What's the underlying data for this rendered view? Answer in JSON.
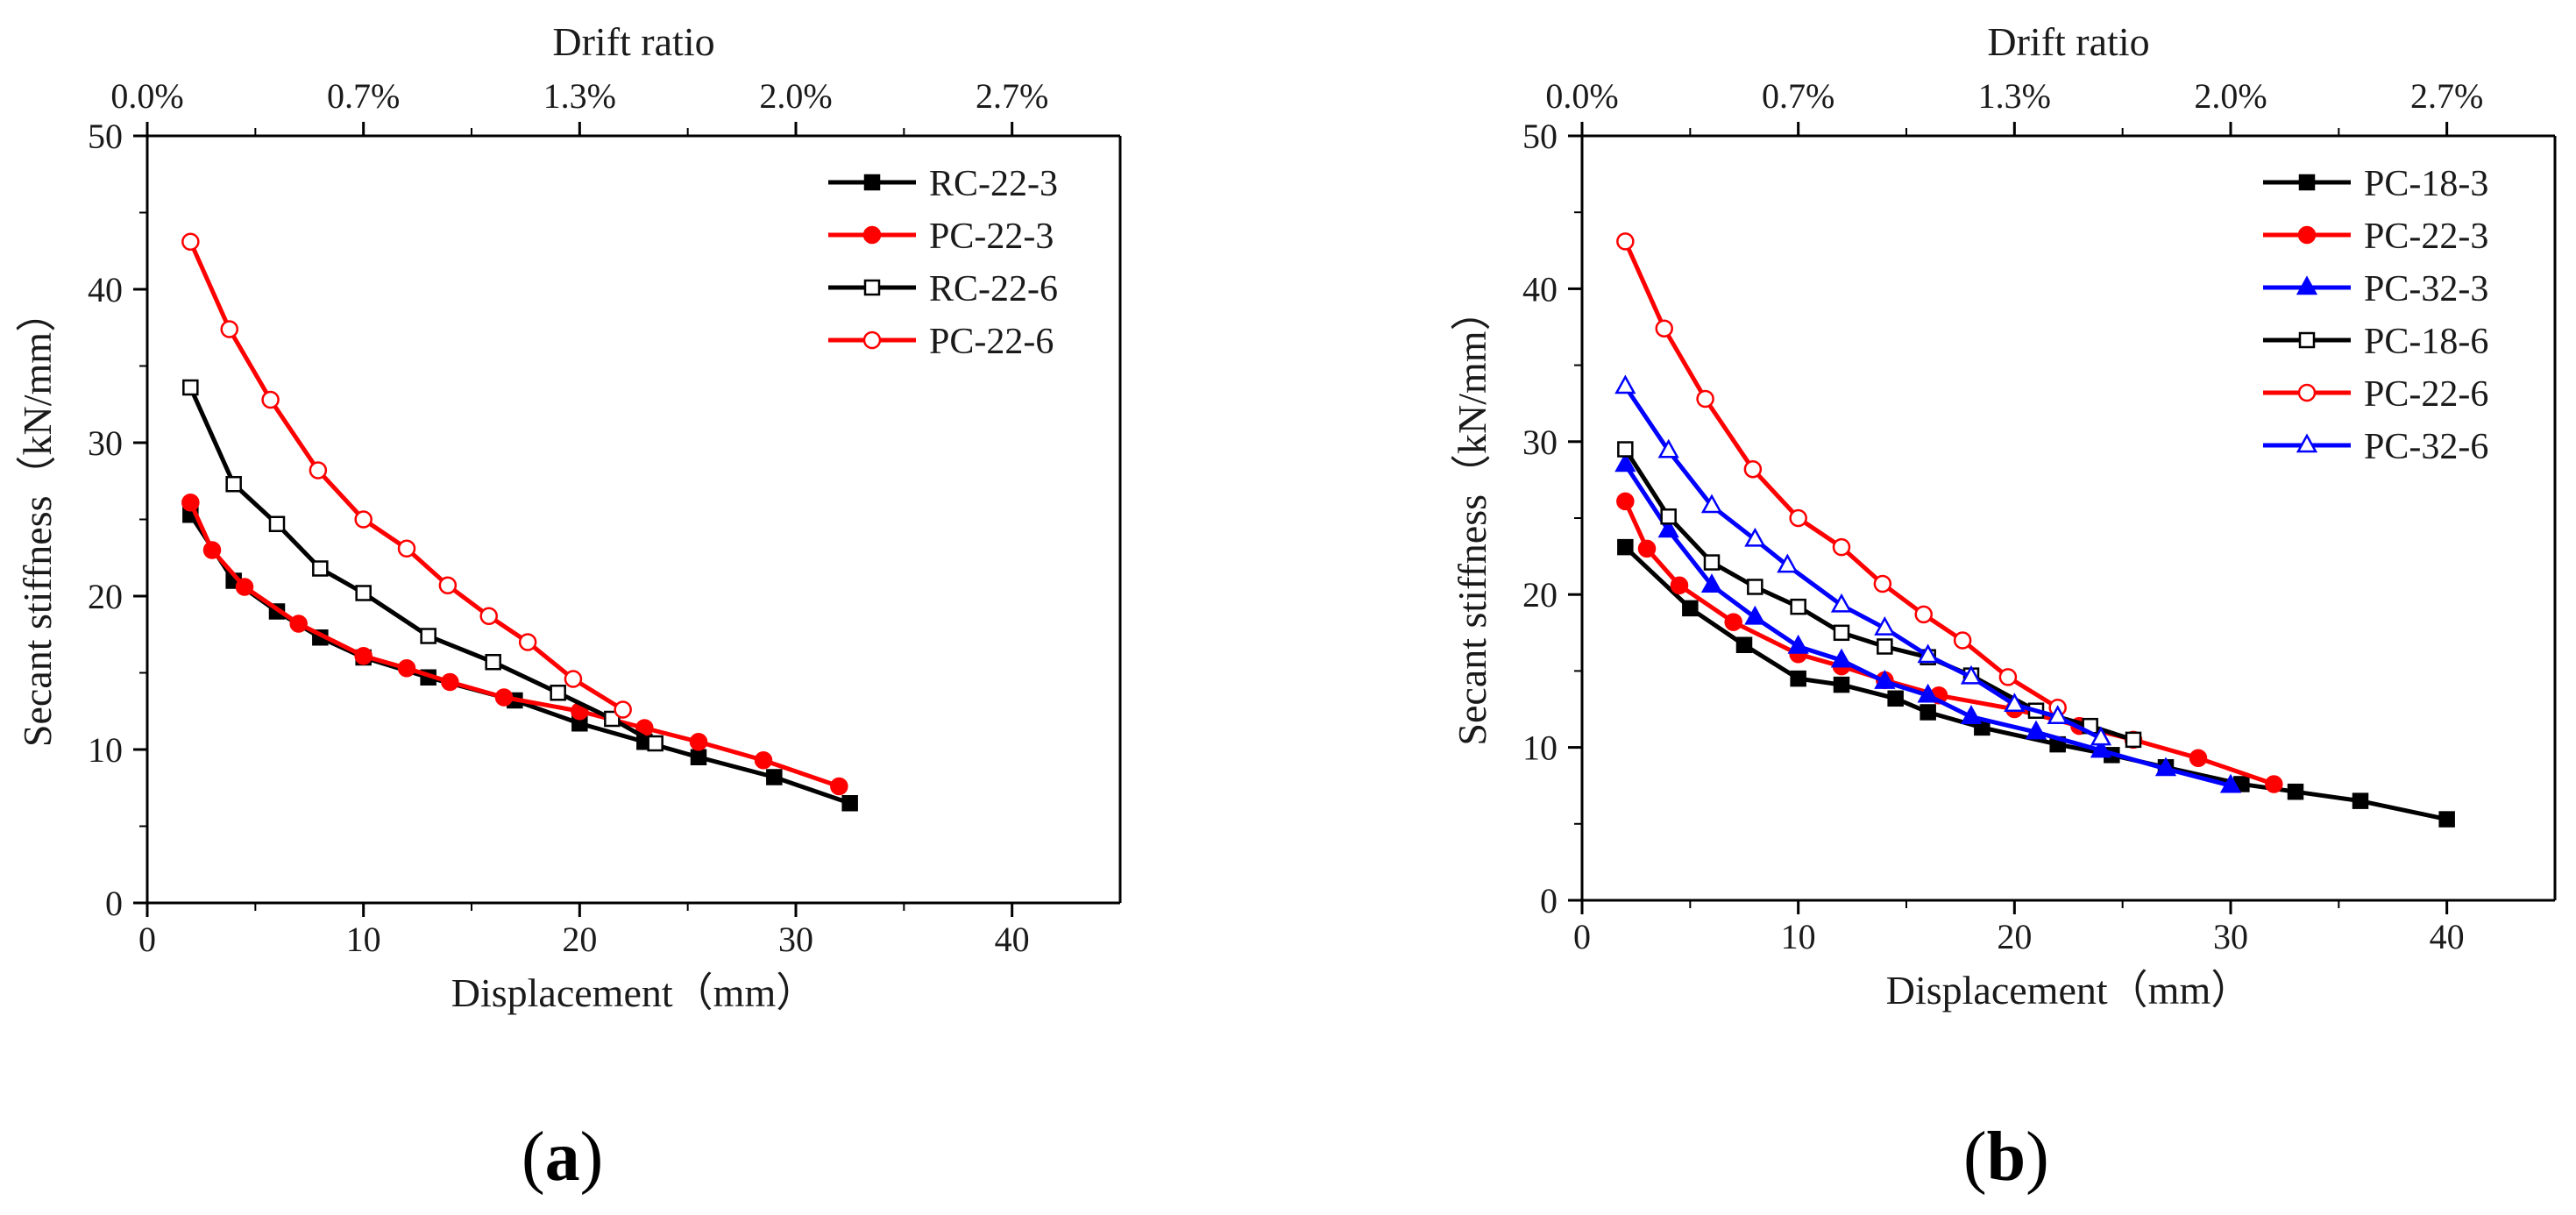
{
  "figure": {
    "panels": [
      {
        "label_open": "(",
        "label_letter": "a",
        "label_close": ")"
      },
      {
        "label_open": "(",
        "label_letter": "b",
        "label_close": ")"
      }
    ]
  },
  "chart_data": [
    {
      "type": "line",
      "panel": "a",
      "xlabel": "Displacement（mm）",
      "ylabel": "Secant stiffness（kN/mm）",
      "top_axis_label": "Drift ratio",
      "xlim": [
        0,
        45
      ],
      "ylim": [
        0,
        50
      ],
      "x_ticks": [
        "0",
        "10",
        "20",
        "30",
        "40"
      ],
      "y_ticks": [
        "0",
        "10",
        "20",
        "30",
        "40",
        "50"
      ],
      "top_ticks": [
        "0.0%",
        "0.7%",
        "1.3%",
        "2.0%",
        "2.7%"
      ],
      "legend_position": "top-right",
      "grid": false,
      "series": [
        {
          "name": "RC-22-3",
          "color": "#000000",
          "marker": "square",
          "filled": true,
          "x": [
            2.0,
            4.0,
            6.0,
            8.0,
            10.0,
            13.0,
            17.0,
            20.0,
            23.0,
            25.5,
            29.0,
            32.5
          ],
          "y": [
            25.3,
            21.0,
            19.0,
            17.3,
            16.0,
            14.7,
            13.2,
            11.7,
            10.5,
            9.5,
            8.2,
            6.5
          ]
        },
        {
          "name": "PC-22-3",
          "color": "#ff0000",
          "marker": "circle",
          "filled": true,
          "x": [
            2.0,
            3.0,
            4.5,
            7.0,
            10.0,
            12.0,
            14.0,
            16.5,
            20.0,
            23.0,
            25.5,
            28.5,
            32.0
          ],
          "y": [
            26.1,
            23.0,
            20.6,
            18.2,
            16.1,
            15.3,
            14.4,
            13.4,
            12.5,
            11.4,
            10.5,
            9.3,
            7.6
          ]
        },
        {
          "name": "RC-22-6",
          "color": "#000000",
          "marker": "square",
          "filled": false,
          "x": [
            2.0,
            4.0,
            6.0,
            8.0,
            10.0,
            13.0,
            16.0,
            19.0,
            21.5,
            23.5
          ],
          "y": [
            33.6,
            27.3,
            24.7,
            21.8,
            20.2,
            17.4,
            15.7,
            13.7,
            12.0,
            10.4
          ]
        },
        {
          "name": "PC-22-6",
          "color": "#ff0000",
          "marker": "circle",
          "filled": false,
          "x": [
            2.0,
            3.8,
            5.7,
            7.9,
            10.0,
            12.0,
            13.9,
            15.8,
            17.6,
            19.7,
            22.0
          ],
          "y": [
            43.1,
            37.4,
            32.8,
            28.2,
            25.0,
            23.1,
            20.7,
            18.7,
            17.0,
            14.6,
            12.6
          ]
        }
      ]
    },
    {
      "type": "line",
      "panel": "b",
      "xlabel": "Displacement（mm）",
      "ylabel": "Secant stiffness（kN/mm）",
      "top_axis_label": "Drift ratio",
      "xlim": [
        0,
        45
      ],
      "ylim": [
        0,
        50
      ],
      "x_ticks": [
        "0",
        "10",
        "20",
        "30",
        "40"
      ],
      "y_ticks": [
        "0",
        "10",
        "20",
        "30",
        "40",
        "50"
      ],
      "top_ticks": [
        "0.0%",
        "0.7%",
        "1.3%",
        "2.0%",
        "2.7%"
      ],
      "legend_position": "top-right",
      "grid": false,
      "series": [
        {
          "name": "PC-18-3",
          "color": "#000000",
          "marker": "square",
          "filled": true,
          "x": [
            2.0,
            5.0,
            7.5,
            10.0,
            12.0,
            14.5,
            16.0,
            18.5,
            22.0,
            24.5,
            27.0,
            30.5,
            33.0,
            36.0,
            40.0
          ],
          "y": [
            23.1,
            19.1,
            16.7,
            14.5,
            14.1,
            13.2,
            12.3,
            11.3,
            10.2,
            9.5,
            8.7,
            7.6,
            7.1,
            6.5,
            5.3
          ]
        },
        {
          "name": "PC-22-3",
          "color": "#ff0000",
          "marker": "circle",
          "filled": true,
          "x": [
            2.0,
            3.0,
            4.5,
            7.0,
            10.0,
            12.0,
            14.0,
            16.5,
            20.0,
            23.0,
            25.5,
            28.5,
            32.0
          ],
          "y": [
            26.1,
            23.0,
            20.6,
            18.2,
            16.1,
            15.3,
            14.4,
            13.4,
            12.5,
            11.4,
            10.5,
            9.3,
            7.6
          ]
        },
        {
          "name": "PC-32-3",
          "color": "#0000ff",
          "marker": "triangle",
          "filled": true,
          "x": [
            2.0,
            4.0,
            6.0,
            8.0,
            10.0,
            12.0,
            14.0,
            16.0,
            18.0,
            21.0,
            24.0,
            27.0,
            30.0
          ],
          "y": [
            28.5,
            24.2,
            20.6,
            18.5,
            16.6,
            15.7,
            14.3,
            13.4,
            12.0,
            11.0,
            9.8,
            8.6,
            7.5
          ]
        },
        {
          "name": "PC-18-6",
          "color": "#000000",
          "marker": "square",
          "filled": false,
          "x": [
            2.0,
            4.0,
            6.0,
            8.0,
            10.0,
            12.0,
            14.0,
            16.0,
            18.0,
            21.0,
            23.5,
            25.5
          ],
          "y": [
            29.5,
            25.1,
            22.1,
            20.5,
            19.2,
            17.5,
            16.6,
            15.9,
            14.7,
            12.4,
            11.4,
            10.5
          ]
        },
        {
          "name": "PC-22-6",
          "color": "#ff0000",
          "marker": "circle",
          "filled": false,
          "x": [
            2.0,
            3.8,
            5.7,
            7.9,
            10.0,
            12.0,
            13.9,
            15.8,
            17.6,
            19.7,
            22.0
          ],
          "y": [
            43.1,
            37.4,
            32.8,
            28.2,
            25.0,
            23.1,
            20.7,
            18.7,
            17.0,
            14.6,
            12.6
          ]
        },
        {
          "name": "PC-32-6",
          "color": "#0000ff",
          "marker": "triangle",
          "filled": false,
          "x": [
            2.0,
            4.0,
            6.0,
            8.0,
            9.5,
            12.0,
            14.0,
            16.0,
            18.0,
            20.0,
            22.0,
            24.0
          ],
          "y": [
            33.6,
            29.4,
            25.8,
            23.6,
            21.9,
            19.3,
            17.8,
            16.0,
            14.6,
            12.8,
            12.0,
            10.6
          ]
        }
      ]
    }
  ]
}
